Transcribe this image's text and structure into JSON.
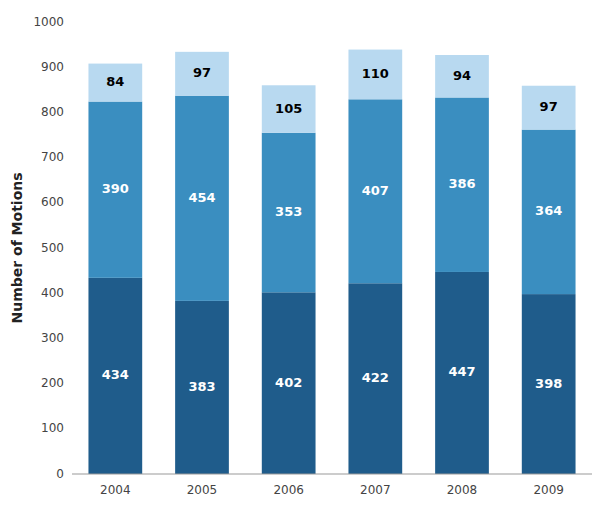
{
  "chart_data": {
    "type": "bar",
    "stacked": true,
    "data_labels": true,
    "categories": [
      "2004",
      "2005",
      "2006",
      "2007",
      "2008",
      "2009"
    ],
    "series": [
      {
        "color": "#1F5C8B",
        "values": [
          434,
          383,
          402,
          422,
          447,
          398
        ]
      },
      {
        "color": "#3A8EC0",
        "values": [
          390,
          454,
          353,
          407,
          386,
          364
        ]
      },
      {
        "color": "#B8D9F0",
        "values": [
          84,
          97,
          105,
          110,
          94,
          97
        ]
      }
    ],
    "ylabel": "Number of Motions",
    "ylim": [
      0,
      1000
    ],
    "yticks": [
      0,
      100,
      200,
      300,
      400,
      500,
      600,
      700,
      800,
      900,
      1000
    ],
    "grid": false
  }
}
